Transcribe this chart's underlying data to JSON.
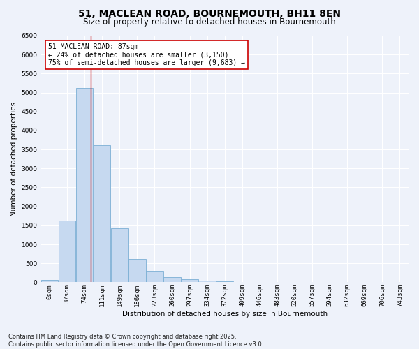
{
  "title": "51, MACLEAN ROAD, BOURNEMOUTH, BH11 8EN",
  "subtitle": "Size of property relative to detached houses in Bournemouth",
  "xlabel": "Distribution of detached houses by size in Bournemouth",
  "ylabel": "Number of detached properties",
  "bin_labels": [
    "0sqm",
    "37sqm",
    "74sqm",
    "111sqm",
    "149sqm",
    "186sqm",
    "223sqm",
    "260sqm",
    "297sqm",
    "334sqm",
    "372sqm",
    "409sqm",
    "446sqm",
    "483sqm",
    "520sqm",
    "557sqm",
    "594sqm",
    "632sqm",
    "669sqm",
    "706sqm",
    "743sqm"
  ],
  "bar_heights": [
    70,
    1620,
    5120,
    3620,
    1420,
    620,
    310,
    140,
    75,
    50,
    20,
    0,
    0,
    0,
    0,
    0,
    0,
    0,
    0,
    0,
    0
  ],
  "bar_color": "#c6d9f0",
  "bar_edge_color": "#7bafd4",
  "property_line_x": 87,
  "property_line_color": "#cc0000",
  "annotation_text": "51 MACLEAN ROAD: 87sqm\n← 24% of detached houses are smaller (3,150)\n75% of semi-detached houses are larger (9,683) →",
  "annotation_box_color": "#ffffff",
  "annotation_box_edge_color": "#cc0000",
  "ylim": [
    0,
    6500
  ],
  "yticks": [
    0,
    500,
    1000,
    1500,
    2000,
    2500,
    3000,
    3500,
    4000,
    4500,
    5000,
    5500,
    6000,
    6500
  ],
  "background_color": "#eef2fa",
  "footer_text": "Contains HM Land Registry data © Crown copyright and database right 2025.\nContains public sector information licensed under the Open Government Licence v3.0.",
  "title_fontsize": 10,
  "subtitle_fontsize": 8.5,
  "axis_label_fontsize": 7.5,
  "tick_fontsize": 6.5,
  "annotation_fontsize": 7,
  "footer_fontsize": 6
}
